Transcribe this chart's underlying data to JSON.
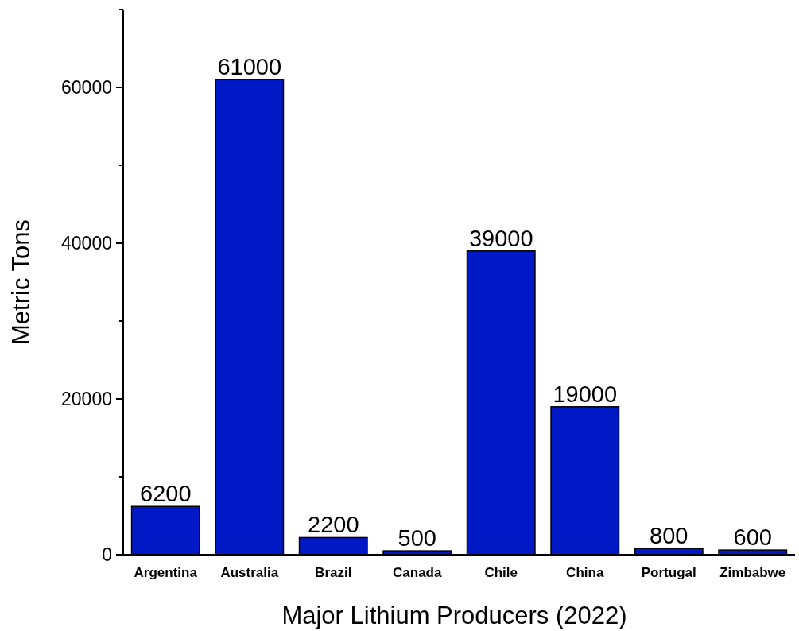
{
  "chart_data": {
    "type": "bar",
    "xlabel": "Major Lithium Producers (2022)",
    "ylabel": "Metric Tons",
    "categories": [
      "Argentina",
      "Australia",
      "Brazil",
      "Canada",
      "Chile",
      "China",
      "Portugal",
      "Zimbabwe"
    ],
    "values": [
      6200,
      61000,
      2200,
      500,
      39000,
      19000,
      800,
      600
    ],
    "color": "#0019c6",
    "ylim": [
      0,
      70000
    ],
    "yticks": [
      0,
      {
        "value": 10000,
        "label": null
      },
      20000,
      {
        "value": 30000,
        "label": null
      },
      40000,
      {
        "value": 50000,
        "label": null
      },
      60000,
      {
        "value": 70000,
        "label": null
      }
    ],
    "data_labels": true,
    "grid": false
  }
}
